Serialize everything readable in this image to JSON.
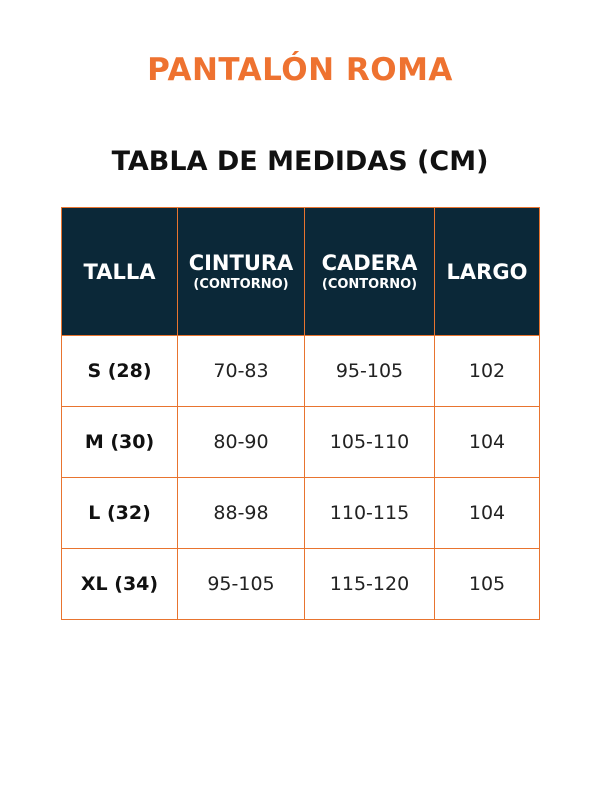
{
  "title": "PANTALÓN ROMA",
  "subtitle": "TABLA DE MEDIDAS (CM)",
  "colors": {
    "accent": "#ee7230",
    "header_bg": "#0b2838",
    "border": "#e8742f"
  },
  "table": {
    "headers": [
      {
        "label": "TALLA",
        "sub": ""
      },
      {
        "label": "CINTURA",
        "sub": "(CONTORNO)"
      },
      {
        "label": "CADERA",
        "sub": "(CONTORNO)"
      },
      {
        "label": "LARGO",
        "sub": ""
      }
    ],
    "rows": [
      [
        "S (28)",
        "70-83",
        "95-105",
        "102"
      ],
      [
        "M (30)",
        "80-90",
        "105-110",
        "104"
      ],
      [
        "L (32)",
        "88-98",
        "110-115",
        "104"
      ],
      [
        "XL (34)",
        "95-105",
        "115-120",
        "105"
      ]
    ]
  }
}
